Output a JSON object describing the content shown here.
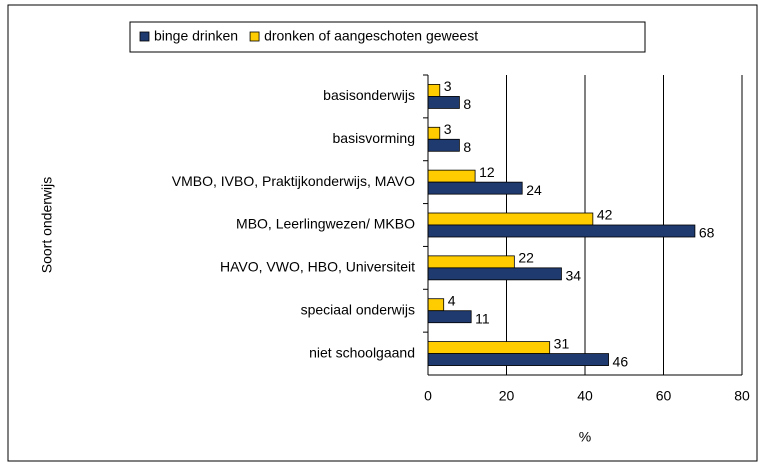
{
  "chart_data": {
    "type": "hbar",
    "categories": [
      "basisonderwijs",
      "basisvorming",
      "VMBO, IVBO, Praktijkonderwijs, MAVO",
      "MBO, Leerlingwezen/ MKBO",
      "HAVO, VWO, HBO, Universiteit",
      "speciaal onderwijs",
      "niet schoolgaand"
    ],
    "series": [
      {
        "name": "binge drinken",
        "color": "#1f3a6e",
        "values": [
          8,
          8,
          24,
          68,
          34,
          11,
          46
        ]
      },
      {
        "name": "dronken of aangeschoten geweest",
        "color": "#ffcc00",
        "values": [
          3,
          3,
          12,
          42,
          22,
          4,
          31
        ]
      }
    ],
    "xlim": [
      0,
      80
    ],
    "xticks": [
      0,
      20,
      40,
      60,
      80
    ],
    "x_label": "%",
    "y_label": "Soort onderwijs",
    "grid": true,
    "legend": "top"
  }
}
